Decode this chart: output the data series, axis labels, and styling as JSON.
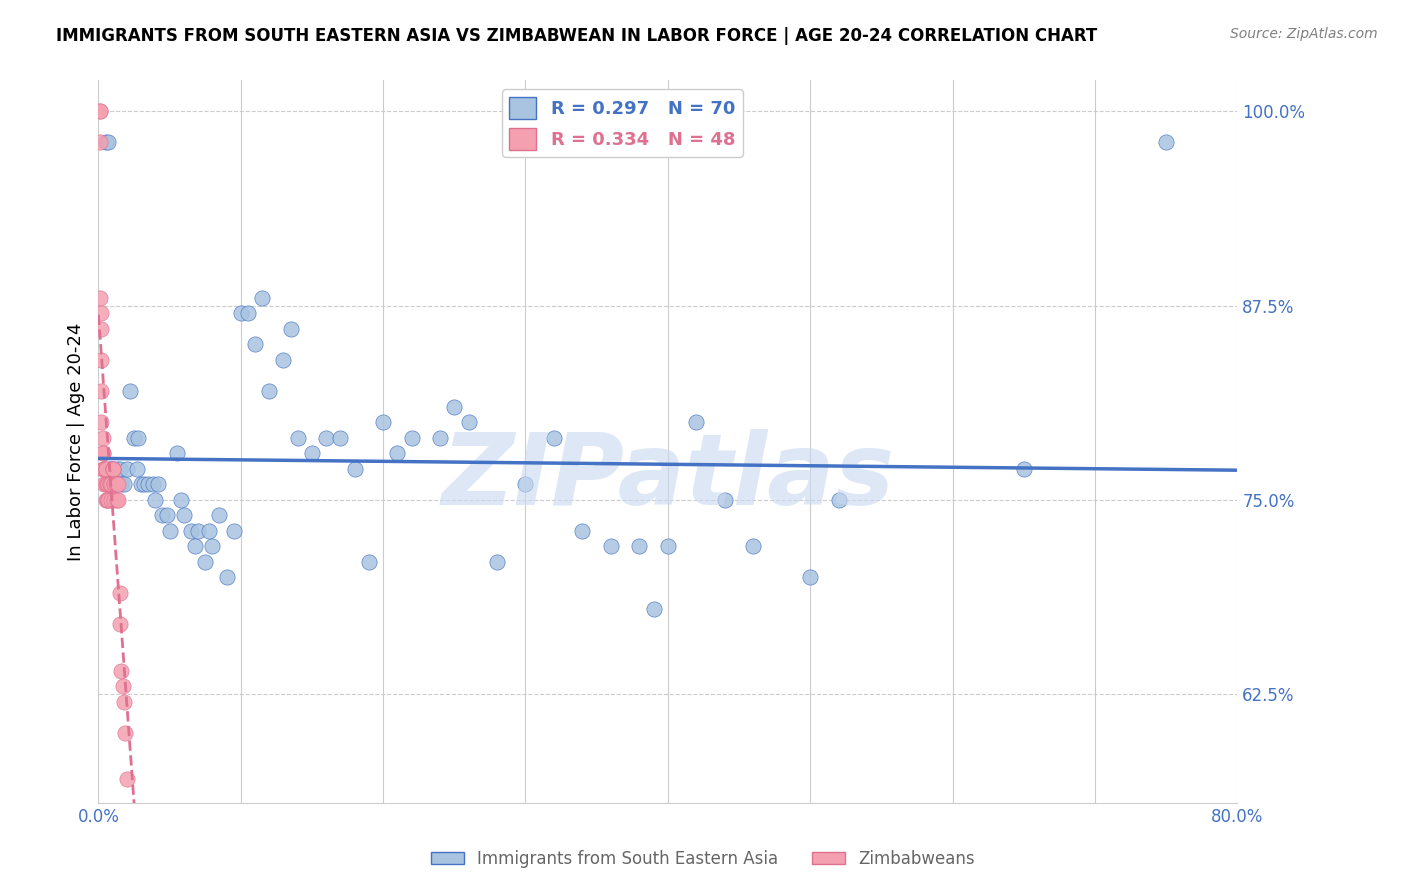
{
  "title": "IMMIGRANTS FROM SOUTH EASTERN ASIA VS ZIMBABWEAN IN LABOR FORCE | AGE 20-24 CORRELATION CHART",
  "source": "Source: ZipAtlas.com",
  "ylabel": "In Labor Force | Age 20-24",
  "blue_label": "Immigrants from South Eastern Asia",
  "pink_label": "Zimbabweans",
  "blue_R": 0.297,
  "blue_N": 70,
  "pink_R": 0.334,
  "pink_N": 48,
  "blue_color": "#a8c4e0",
  "pink_color": "#f4a0b0",
  "blue_line_color": "#4472c4",
  "pink_line_color": "#e07090",
  "watermark": "ZIPatlas",
  "watermark_color": "#c8d8f0",
  "xlim": [
    0.0,
    0.8
  ],
  "ylim": [
    0.555,
    1.02
  ],
  "xticks": [
    0.0,
    0.1,
    0.2,
    0.3,
    0.4,
    0.5,
    0.6,
    0.7,
    0.8
  ],
  "yticks": [
    0.625,
    0.75,
    0.875,
    1.0
  ],
  "ytick_labels": [
    "62.5%",
    "75.0%",
    "87.5%",
    "100.0%"
  ],
  "xtick_labels": [
    "0.0%",
    "",
    "",
    "",
    "",
    "",
    "",
    "",
    "80.0%"
  ],
  "blue_x": [
    0.005,
    0.007,
    0.008,
    0.009,
    0.01,
    0.012,
    0.013,
    0.015,
    0.016,
    0.018,
    0.02,
    0.022,
    0.025,
    0.027,
    0.028,
    0.03,
    0.032,
    0.035,
    0.038,
    0.04,
    0.042,
    0.045,
    0.048,
    0.05,
    0.055,
    0.058,
    0.06,
    0.065,
    0.068,
    0.07,
    0.075,
    0.078,
    0.08,
    0.085,
    0.09,
    0.095,
    0.1,
    0.105,
    0.11,
    0.115,
    0.12,
    0.13,
    0.135,
    0.14,
    0.15,
    0.16,
    0.17,
    0.18,
    0.19,
    0.2,
    0.21,
    0.22,
    0.24,
    0.25,
    0.26,
    0.28,
    0.3,
    0.32,
    0.34,
    0.36,
    0.38,
    0.39,
    0.4,
    0.42,
    0.44,
    0.46,
    0.5,
    0.52,
    0.65,
    0.75
  ],
  "blue_y": [
    0.98,
    0.98,
    0.77,
    0.77,
    0.77,
    0.76,
    0.77,
    0.77,
    0.76,
    0.76,
    0.77,
    0.82,
    0.79,
    0.77,
    0.79,
    0.76,
    0.76,
    0.76,
    0.76,
    0.75,
    0.76,
    0.74,
    0.74,
    0.73,
    0.78,
    0.75,
    0.74,
    0.73,
    0.72,
    0.73,
    0.71,
    0.73,
    0.72,
    0.74,
    0.7,
    0.73,
    0.87,
    0.87,
    0.85,
    0.88,
    0.82,
    0.84,
    0.86,
    0.79,
    0.78,
    0.79,
    0.79,
    0.77,
    0.71,
    0.8,
    0.78,
    0.79,
    0.79,
    0.81,
    0.8,
    0.71,
    0.76,
    0.79,
    0.73,
    0.72,
    0.72,
    0.68,
    0.72,
    0.8,
    0.75,
    0.72,
    0.7,
    0.75,
    0.77,
    0.98
  ],
  "pink_x": [
    0.001,
    0.001,
    0.001,
    0.001,
    0.002,
    0.002,
    0.002,
    0.002,
    0.002,
    0.003,
    0.003,
    0.003,
    0.003,
    0.004,
    0.004,
    0.004,
    0.005,
    0.005,
    0.005,
    0.005,
    0.006,
    0.006,
    0.007,
    0.007,
    0.007,
    0.008,
    0.008,
    0.009,
    0.009,
    0.01,
    0.01,
    0.01,
    0.011,
    0.011,
    0.011,
    0.012,
    0.013,
    0.013,
    0.013,
    0.014,
    0.014,
    0.015,
    0.015,
    0.016,
    0.017,
    0.018,
    0.019,
    0.02
  ],
  "pink_y": [
    1.0,
    1.0,
    0.98,
    0.88,
    0.87,
    0.86,
    0.84,
    0.82,
    0.8,
    0.79,
    0.78,
    0.78,
    0.77,
    0.77,
    0.77,
    0.76,
    0.77,
    0.77,
    0.76,
    0.75,
    0.76,
    0.75,
    0.76,
    0.75,
    0.75,
    0.76,
    0.76,
    0.76,
    0.75,
    0.77,
    0.77,
    0.77,
    0.76,
    0.76,
    0.75,
    0.76,
    0.76,
    0.76,
    0.75,
    0.75,
    0.76,
    0.69,
    0.67,
    0.64,
    0.63,
    0.62,
    0.6,
    0.57
  ]
}
